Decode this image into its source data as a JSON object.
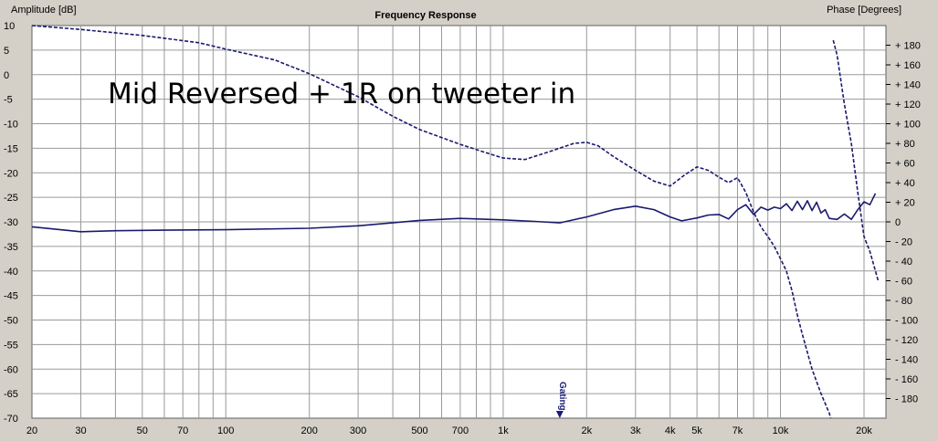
{
  "chart_data": {
    "type": "line",
    "title": "Frequency Response",
    "y_left_label": "Amplitude [dB]",
    "y_right_label": "Phase [Degrees]",
    "annotation": "Mid Reversed + 1R on tweeter in",
    "marker_label": "Gating",
    "marker_x": 1600,
    "x_scale": "log",
    "xlim": [
      20,
      24000
    ],
    "ylim_left": [
      -70,
      10
    ],
    "ylim_right": [
      -200,
      200
    ],
    "grid": true,
    "x_tick_labels": [
      {
        "v": 20,
        "t": "20"
      },
      {
        "v": 30,
        "t": "30"
      },
      {
        "v": 50,
        "t": "50"
      },
      {
        "v": 70,
        "t": "70"
      },
      {
        "v": 100,
        "t": "100"
      },
      {
        "v": 200,
        "t": "200"
      },
      {
        "v": 300,
        "t": "300"
      },
      {
        "v": 500,
        "t": "500"
      },
      {
        "v": 700,
        "t": "700"
      },
      {
        "v": 1000,
        "t": "1k"
      },
      {
        "v": 2000,
        "t": "2k"
      },
      {
        "v": 3000,
        "t": "3k"
      },
      {
        "v": 4000,
        "t": "4k"
      },
      {
        "v": 5000,
        "t": "5k"
      },
      {
        "v": 7000,
        "t": "7k"
      },
      {
        "v": 10000,
        "t": "10k"
      },
      {
        "v": 20000,
        "t": "20k"
      }
    ],
    "y_left_ticks": [
      10,
      5,
      0,
      -5,
      -10,
      -15,
      -20,
      -25,
      -30,
      -35,
      -40,
      -45,
      -50,
      -55,
      -60,
      -65,
      -70
    ],
    "y_right_ticks": [
      180,
      160,
      140,
      120,
      100,
      80,
      60,
      40,
      20,
      0,
      -20,
      -40,
      -60,
      -80,
      -100,
      -120,
      -140,
      -160,
      -180
    ],
    "colors": {
      "line": "#1a1a6e",
      "grid": "#9a9a9a",
      "plot_bg": "#ffffff",
      "marker": "#1a1a7a"
    },
    "series": [
      {
        "style": "solid",
        "axis": "left",
        "x": [
          20,
          30,
          40,
          60,
          100,
          200,
          300,
          500,
          700,
          1000,
          1300,
          1600,
          2000,
          2500,
          3000,
          3500,
          4000,
          4400,
          5000,
          5500,
          6000,
          6500,
          7000,
          7500,
          8000,
          8500,
          9000,
          9500,
          10000,
          10500,
          11000,
          11500,
          12000,
          12500,
          13000,
          13500,
          14000,
          14500,
          15000,
          16000,
          17000,
          18000,
          19000,
          20000,
          21000,
          22000
        ],
        "y": [
          -31,
          -32,
          -31.8,
          -31.7,
          -31.6,
          -31.3,
          -30.8,
          -29.7,
          -29.3,
          -29.6,
          -29.9,
          -30.2,
          -29,
          -27.5,
          -26.8,
          -27.5,
          -29,
          -29.8,
          -29.2,
          -28.6,
          -28.5,
          -29.4,
          -27.5,
          -26.5,
          -28.5,
          -27,
          -27.6,
          -27,
          -27.3,
          -26.3,
          -27.7,
          -25.8,
          -27.5,
          -25.7,
          -27.7,
          -26,
          -28.2,
          -27.5,
          -29.3,
          -29.5,
          -28.4,
          -29.5,
          -27.5,
          -25.9,
          -26.5,
          -24.2
        ]
      },
      {
        "style": "dashed",
        "axis": "left",
        "x": [
          20,
          30,
          50,
          80,
          100,
          150,
          200,
          300,
          400,
          500,
          700,
          900,
          1000,
          1200,
          1500,
          1800,
          2000,
          2200,
          2500,
          3000,
          3500,
          4000,
          4500,
          5000,
          5500,
          6000,
          6500,
          7000,
          7500,
          8000,
          8500,
          9000,
          9500,
          10000,
          10500,
          11000,
          11500,
          12000,
          13000,
          14000,
          15000,
          15500
        ],
        "y": [
          10,
          9.2,
          8,
          6.5,
          5.2,
          3,
          0.2,
          -4.5,
          -8.5,
          -11.2,
          -14.2,
          -16.2,
          -17,
          -17.3,
          -15.5,
          -14,
          -13.8,
          -14.5,
          -16.7,
          -19.5,
          -21.7,
          -22.7,
          -20.5,
          -18.8,
          -19.5,
          -20.9,
          -22,
          -21,
          -24,
          -28,
          -31,
          -33,
          -35,
          -37.5,
          -40,
          -44,
          -49,
          -53,
          -60,
          -65,
          -69,
          -72
        ]
      },
      {
        "style": "dashed",
        "axis": "right",
        "x": [
          15500,
          16000,
          17000,
          18000,
          19000,
          20000,
          21000,
          22000,
          22500
        ],
        "y": [
          185,
          170,
          120,
          80,
          30,
          -15,
          -30,
          -50,
          -60
        ]
      }
    ]
  }
}
